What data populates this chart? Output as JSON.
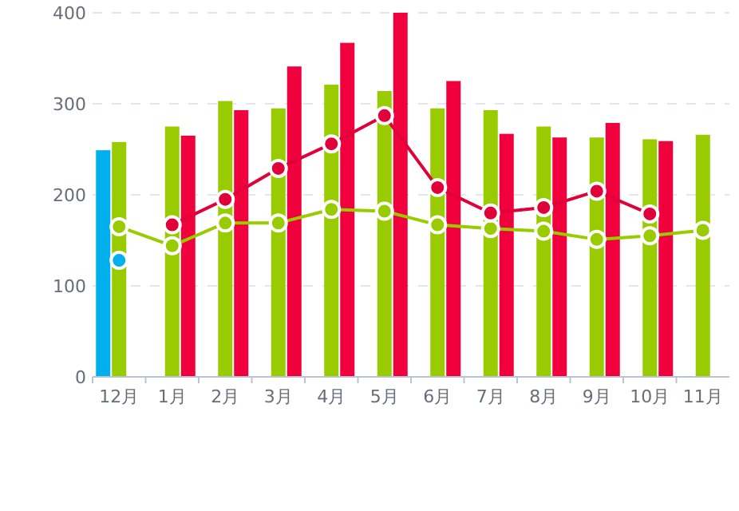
{
  "chart_data": {
    "type": "bar",
    "categories": [
      "12月",
      "1月",
      "2月",
      "3月",
      "4月",
      "5月",
      "6月",
      "7月",
      "8月",
      "9月",
      "10月",
      "11月"
    ],
    "series": [
      {
        "color": "#00b0ec",
        "values": [
          249,
          null,
          null,
          null,
          null,
          null,
          null,
          null,
          null,
          null,
          null,
          null
        ]
      },
      {
        "color": "#99cc00",
        "values": [
          258,
          275,
          303,
          295,
          321,
          314,
          295,
          293,
          275,
          263,
          261,
          266
        ]
      },
      {
        "color": "#f0003c",
        "values": [
          null,
          265,
          293,
          341,
          367,
          400,
          325,
          267,
          263,
          279,
          259,
          null
        ]
      },
      {
        "type": "line",
        "color": "#00b0ec",
        "values": [
          128,
          null,
          null,
          null,
          null,
          null,
          null,
          null,
          null,
          null,
          null,
          null
        ]
      },
      {
        "type": "line",
        "color": "#99cc00",
        "values": [
          165,
          144,
          169,
          169,
          184,
          182,
          167,
          163,
          160,
          151,
          155,
          161
        ]
      },
      {
        "type": "line",
        "color": "#e0003a",
        "values": [
          null,
          167,
          195,
          229,
          256,
          287,
          208,
          180,
          186,
          204,
          179,
          null
        ]
      }
    ],
    "ylim": [
      0,
      400
    ],
    "yticks": [
      0,
      100,
      200,
      300,
      400
    ],
    "grid": "y",
    "marker": "circle"
  }
}
